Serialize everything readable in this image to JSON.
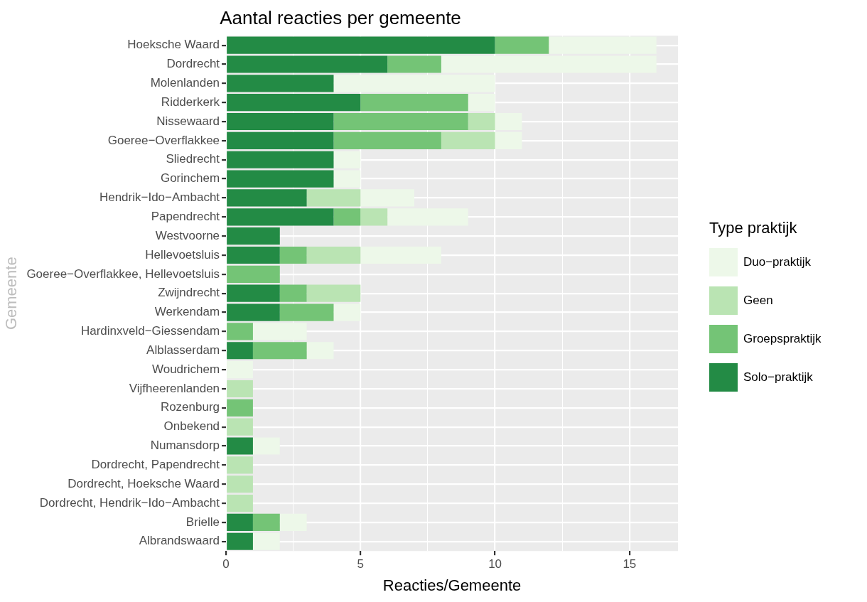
{
  "chart_data": {
    "type": "bar",
    "orientation": "horizontal",
    "stacked": true,
    "title": "Aantal reacties per gemeente",
    "xlabel": "Reacties/Gemeente",
    "ylabel": "Gemeente",
    "legend_title": "Type praktijk",
    "legend": "right",
    "grid": true,
    "categories": [
      "Hoeksche Waard",
      "Dordrecht",
      "Molenlanden",
      "Ridderkerk",
      "Nissewaard",
      "Goeree−Overflakkee",
      "Sliedrecht",
      "Gorinchem",
      "Hendrik−Ido−Ambacht",
      "Papendrecht",
      "Westvoorne",
      "Hellevoetsluis",
      "Goeree−Overflakkee, Hellevoetsluis",
      "Zwijndrecht",
      "Werkendam",
      "Hardinxveld−Giessendam",
      "Alblasserdam",
      "Woudrichem",
      "Vijfheerenlanden",
      "Rozenburg",
      "Onbekend",
      "Numansdorp",
      "Dordrecht, Papendrecht",
      "Dordrecht, Hoeksche Waard",
      "Dordrecht, Hendrik−Ido−Ambacht",
      "Brielle",
      "Albrandswaard"
    ],
    "series": [
      {
        "name": "Solo−praktijk",
        "color": "#238b45",
        "values": [
          10,
          6,
          4,
          5,
          4,
          4,
          4,
          4,
          3,
          4,
          2,
          2,
          0,
          2,
          2,
          0,
          1,
          0,
          0,
          0,
          0,
          1,
          0,
          0,
          0,
          1,
          1
        ]
      },
      {
        "name": "Groepspraktijk",
        "color": "#74c476",
        "values": [
          2,
          2,
          0,
          4,
          5,
          4,
          0,
          0,
          0,
          1,
          0,
          1,
          2,
          1,
          2,
          1,
          2,
          0,
          0,
          1,
          0,
          0,
          0,
          0,
          0,
          1,
          0
        ]
      },
      {
        "name": "Geen",
        "color": "#bae4b3",
        "values": [
          0,
          0,
          0,
          0,
          1,
          2,
          0,
          0,
          2,
          1,
          0,
          2,
          0,
          2,
          0,
          0,
          0,
          0,
          1,
          0,
          1,
          0,
          1,
          1,
          1,
          0,
          0
        ]
      },
      {
        "name": "Duo−praktijk",
        "color": "#edf8e9",
        "values": [
          4,
          8,
          6,
          1,
          1,
          1,
          1,
          1,
          2,
          3,
          0,
          3,
          0,
          0,
          1,
          2,
          1,
          1,
          0,
          0,
          0,
          1,
          0,
          0,
          0,
          1,
          1
        ]
      }
    ],
    "xlim": [
      0,
      16.8
    ],
    "xticks": [
      0,
      {
        "value": 2.5,
        "label": null
      },
      5,
      {
        "value": 7.5,
        "label": null
      },
      10,
      {
        "value": 12.5,
        "label": null
      },
      15
    ]
  }
}
